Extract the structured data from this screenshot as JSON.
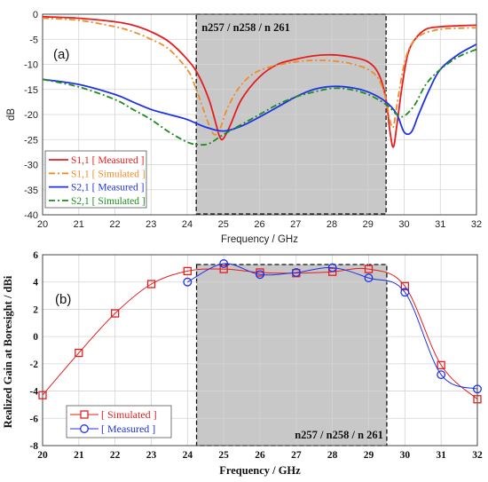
{
  "chart_data": [
    {
      "panel": "(a)",
      "type": "line",
      "xlabel": "Frequency / GHz",
      "ylabel": "dB",
      "xlim": [
        20,
        32
      ],
      "ylim": [
        -40,
        0
      ],
      "xticks": [
        20,
        21,
        22,
        23,
        24,
        25,
        26,
        27,
        28,
        29,
        30,
        31,
        32
      ],
      "yticks": [
        0,
        -5,
        -10,
        -15,
        -20,
        -25,
        -30,
        -35,
        -40
      ],
      "band_label": "n257 / n258 / n 261",
      "band_range": [
        24.25,
        29.5
      ],
      "grid": true,
      "legend_position": "lower-left",
      "series": [
        {
          "name": "S1,1 [ Measured ]",
          "style": "solid",
          "color": "#e41e1e",
          "x": [
            20,
            21,
            22,
            22.5,
            23,
            23.5,
            24,
            24.3,
            24.6,
            24.8,
            24.9,
            25.0,
            25.2,
            25.5,
            26,
            26.5,
            27,
            27.5,
            28,
            28.5,
            29,
            29.3,
            29.5,
            29.6,
            29.7,
            29.8,
            29.95,
            30.1,
            30.3,
            30.6,
            31,
            31.5,
            32
          ],
          "y": [
            -0.5,
            -0.8,
            -1.5,
            -2.2,
            -3.5,
            -5.5,
            -9,
            -12,
            -17,
            -22,
            -24.5,
            -24.8,
            -22,
            -17,
            -12.5,
            -10,
            -9,
            -8.3,
            -8.1,
            -8.5,
            -9.5,
            -12,
            -17,
            -23,
            -26.5,
            -22,
            -14,
            -8,
            -5,
            -3,
            -2.5,
            -2.3,
            -2.2
          ]
        },
        {
          "name": "S1,1 [ Simulated ]",
          "style": "dashdot",
          "color": "#f08c2c",
          "x": [
            20,
            21,
            22,
            22.5,
            23,
            23.5,
            24,
            24.2,
            24.4,
            24.6,
            24.75,
            24.9,
            25.1,
            25.4,
            25.8,
            26.3,
            27,
            27.5,
            28,
            28.5,
            29,
            29.3,
            29.5,
            29.6,
            29.7,
            29.8,
            30.0,
            30.2,
            30.5,
            31,
            31.5,
            32
          ],
          "y": [
            -0.8,
            -1.2,
            -2.5,
            -3.5,
            -5,
            -7,
            -11,
            -14,
            -18,
            -22,
            -24,
            -23,
            -19,
            -15,
            -12,
            -10.5,
            -9.5,
            -9.2,
            -9.3,
            -9.8,
            -11,
            -13,
            -17,
            -21,
            -22.5,
            -18,
            -10,
            -6,
            -4,
            -3,
            -2.8,
            -2.7
          ]
        },
        {
          "name": "S2,1 [ Measured ]",
          "style": "solid",
          "color": "#1e32e6",
          "x": [
            20,
            21,
            22,
            22.5,
            23,
            23.5,
            24,
            24.5,
            25,
            25.5,
            26,
            26.5,
            27,
            27.5,
            28,
            28.5,
            29,
            29.5,
            29.8,
            30.0,
            30.2,
            30.4,
            30.7,
            31,
            31.5,
            32
          ],
          "y": [
            -13,
            -14,
            -16,
            -17.5,
            -19,
            -20,
            -21,
            -22.5,
            -23.3,
            -22.3,
            -20.5,
            -18.5,
            -16.5,
            -15,
            -14.4,
            -14.6,
            -15.5,
            -17.5,
            -20,
            -23.5,
            -23.5,
            -20,
            -15,
            -11,
            -8,
            -6
          ]
        },
        {
          "name": "S2,1 [ Simulated ]",
          "style": "dashdot",
          "color": "#1e8c1e",
          "x": [
            20,
            21,
            22,
            22.5,
            23,
            23.5,
            24,
            24.3,
            24.6,
            25,
            25.5,
            26,
            26.5,
            27,
            27.5,
            28,
            28.5,
            29,
            29.5,
            29.8,
            30.0,
            30.3,
            30.6,
            31,
            31.5,
            32
          ],
          "y": [
            -13,
            -14.5,
            -17,
            -19,
            -21,
            -23.5,
            -25.5,
            -26,
            -25.8,
            -24,
            -22,
            -20,
            -18,
            -16.5,
            -15.5,
            -14.8,
            -15,
            -16,
            -18,
            -20,
            -20.3,
            -18,
            -14,
            -11,
            -8.5,
            -7
          ]
        }
      ]
    },
    {
      "panel": "(b)",
      "type": "line",
      "xlabel": "Frequency / GHz",
      "ylabel": "Realized Gain at Boresight / dBi",
      "xlim": [
        20,
        32
      ],
      "ylim": [
        -8,
        6
      ],
      "xticks": [
        20,
        21,
        22,
        23,
        24,
        25,
        26,
        27,
        28,
        29,
        30,
        31,
        32
      ],
      "yticks": [
        6,
        4,
        2,
        0,
        -2,
        -4,
        -6,
        -8
      ],
      "band_label": "n257 / n258 / n 261",
      "band_range": [
        24.25,
        29.5
      ],
      "grid": true,
      "legend_position": "lower-left",
      "series": [
        {
          "name": "[ Simulated ]",
          "marker": "square",
          "color": "#e41e1e",
          "x": [
            20,
            21,
            22,
            23,
            24,
            25,
            26,
            27,
            28,
            29,
            30,
            31,
            32
          ],
          "y": [
            -4.3,
            -1.2,
            1.7,
            3.85,
            4.8,
            4.95,
            4.7,
            4.65,
            4.75,
            4.95,
            3.7,
            -2.1,
            -4.6
          ]
        },
        {
          "name": "[ Measured ]",
          "marker": "circle",
          "color": "#1e32e6",
          "x": [
            24,
            25,
            26,
            27,
            28,
            29,
            30,
            31,
            32
          ],
          "y": [
            4.0,
            5.35,
            4.55,
            4.7,
            5.05,
            4.3,
            3.25,
            -2.8,
            -3.85
          ]
        }
      ]
    }
  ]
}
